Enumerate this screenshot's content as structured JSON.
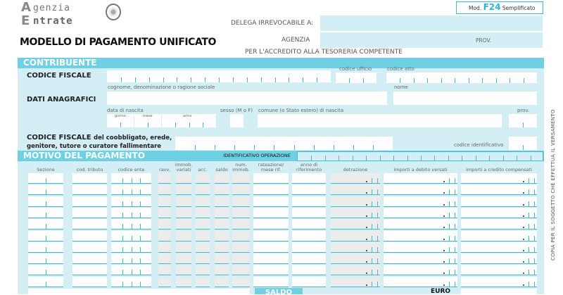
{
  "header": {
    "logo_text": [
      "genzia",
      "ntrate"
    ],
    "logo_initials": [
      "A",
      "E"
    ],
    "model_prefix": "Mod.",
    "model_code": "F24",
    "model_suffix": "Semplificato",
    "title": "MODELLO DI PAGAMENTO UNIFICATO",
    "delega_label": "DELEGA IRREVOCABILE A:",
    "agenzia_label": "AGENZIA",
    "prov_label": "PROV.",
    "accredito_text": "PER L'ACCREDITO ALLA TESORERIA COMPETENTE"
  },
  "contribuente": {
    "section_title": "CONTRIBUENTE",
    "codice_fiscale": "CODICE FISCALE",
    "codice_ufficio": "codice ufficio",
    "codice_atto": "codice atto",
    "cognome": "cognome, denominazione o ragione sociale",
    "nome": "nome",
    "dati_anagrafici": "DATI ANAGRAFICI",
    "data_nascita": "data di nascita",
    "giorno": "giorno",
    "mese": "mese",
    "anno": "anno",
    "sesso": "sesso (M o F)",
    "comune": "comune (o Stato estero) di nascita",
    "prov": "prov.",
    "cf_coobbligato_bold": "CODICE FISCALE",
    "cf_coobbligato_rest": "del coobbligato, erede,",
    "cf_coobbligato_line2": "genitore, tutore o curatore fallimentare",
    "codice_identificativo": "codice identificativo"
  },
  "motivo": {
    "section_title": "MOTIVO DEL PAGAMENTO",
    "identificativo": "IDENTIFICATIVO OPERAZIONE",
    "columns": [
      "Sezione",
      "cod. tributo",
      "codice ente",
      "ravv.",
      "immob. variati",
      "acc.",
      "saldo",
      "num. immob.",
      "rateazione/ mese rif.",
      "anno di riferimento",
      "detrazione",
      "importi a debito versati",
      "importi a credito compensati"
    ],
    "row_count": 10,
    "saldo_label": "SALDO",
    "euro_label": "EURO"
  },
  "side_text": "COPIA PER IL SOGGETTO CHE EFFETTUA IL VERSAMENTO",
  "colors": {
    "accent": "#6fd0e3",
    "panel": "#d4eef5",
    "tick": "#43b9cf",
    "model_code": "#2bb6d3"
  }
}
